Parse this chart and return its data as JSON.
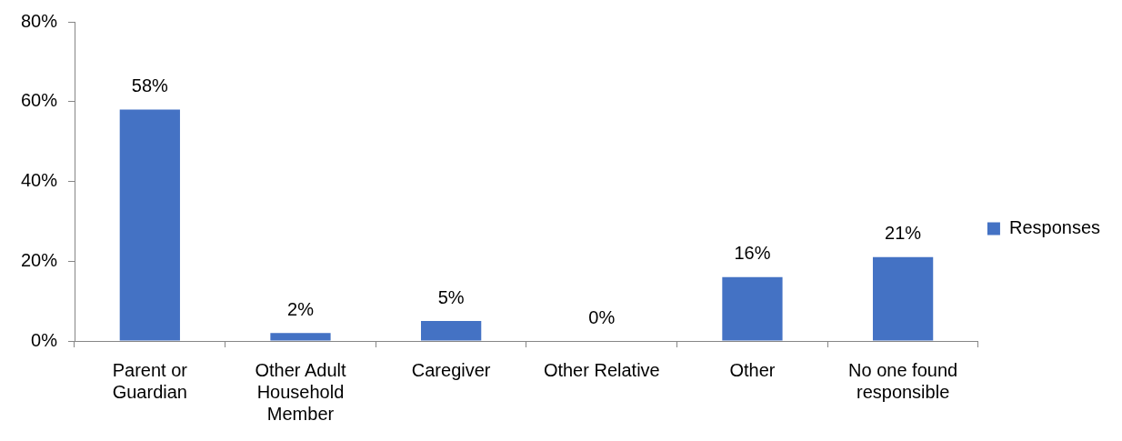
{
  "chart_data": {
    "type": "bar",
    "categories": [
      "Parent or Guardian",
      "Other Adult Household Member",
      "Caregiver",
      "Other Relative",
      "Other",
      "No one found responsible"
    ],
    "series": [
      {
        "name": "Responses",
        "color": "#4472c4",
        "values": [
          58,
          2,
          5,
          0,
          16,
          21
        ],
        "value_labels": [
          "58%",
          "2%",
          "5%",
          "0%",
          "16%",
          "21%"
        ]
      }
    ],
    "ylim": [
      0,
      80
    ],
    "yticks": [
      {
        "value": 0,
        "label": "0%"
      },
      {
        "value": 20,
        "label": "20%"
      },
      {
        "value": 40,
        "label": "40%"
      },
      {
        "value": 60,
        "label": "60%"
      },
      {
        "value": 80,
        "label": "80%"
      }
    ],
    "legend": "right"
  }
}
